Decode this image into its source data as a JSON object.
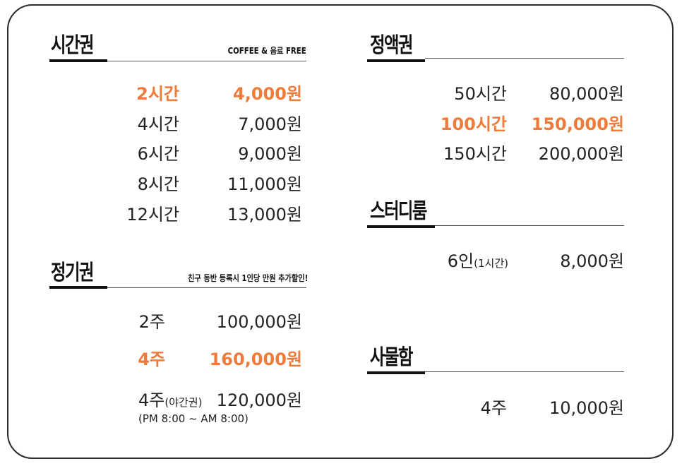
{
  "colors": {
    "highlight": "#ee7b3a",
    "text": "#222222",
    "border": "#2a2a2a"
  },
  "hourly": {
    "title": "시간권",
    "note": "COFFEE & 음료 FREE",
    "rows": [
      {
        "label": "2시간",
        "price": "4,000원"
      },
      {
        "label": "4시간",
        "price": "7,000원"
      },
      {
        "label": "6시간",
        "price": "9,000원"
      },
      {
        "label": "8시간",
        "price": "11,000원"
      },
      {
        "label": "12시간",
        "price": "13,000원"
      }
    ]
  },
  "regular": {
    "title": "정기권",
    "note": "친구 동반 등록시 1인당 만원 추가할인!",
    "rows": [
      {
        "label": "2주",
        "price": "100,000원"
      },
      {
        "label": "4주",
        "price": "160,000원"
      },
      {
        "label": "4주",
        "label_small": "(야간권)",
        "price": "120,000원",
        "note": "(PM 8:00 ~ AM 8:00)"
      }
    ]
  },
  "fixed": {
    "title": "정액권",
    "rows": [
      {
        "label": "50시간",
        "price": "80,000원"
      },
      {
        "label": "100시간",
        "price": "150,000원"
      },
      {
        "label": "150시간",
        "price": "200,000원"
      }
    ]
  },
  "studyroom": {
    "title": "스터디룸",
    "rows": [
      {
        "label": "6인",
        "label_small": "(1시간)",
        "price": "8,000원"
      }
    ]
  },
  "locker": {
    "title": "사물함",
    "rows": [
      {
        "label": "4주",
        "price": "10,000원"
      }
    ]
  }
}
